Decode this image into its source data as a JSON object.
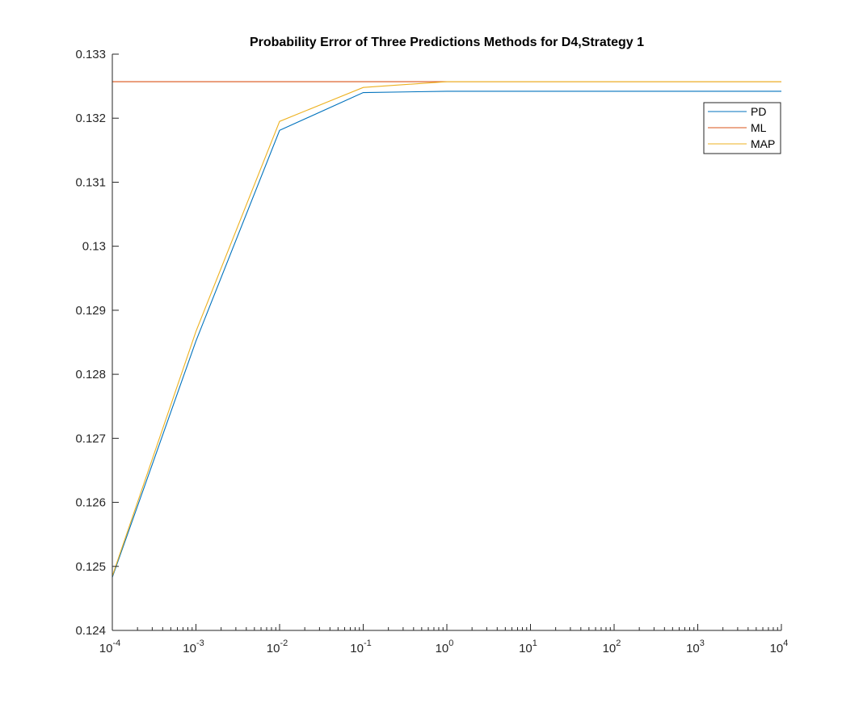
{
  "chart_data": {
    "type": "line",
    "title": "Probability Error of Three Predictions Methods for D4,Strategy 1",
    "xlabel": "",
    "ylabel": "",
    "xscale": "log",
    "xlim": [
      0.0001,
      10000
    ],
    "ylim": [
      0.124,
      0.133
    ],
    "x": [
      0.0001,
      0.001,
      0.01,
      0.1,
      1,
      10,
      100,
      1000,
      10000
    ],
    "x_tick_values": [
      0.0001,
      0.001,
      0.01,
      0.1,
      1,
      10,
      100,
      1000,
      10000
    ],
    "x_tick_labels": [
      {
        "base": "10",
        "exp": "-4"
      },
      {
        "base": "10",
        "exp": "-3"
      },
      {
        "base": "10",
        "exp": "-2"
      },
      {
        "base": "10",
        "exp": "-1"
      },
      {
        "base": "10",
        "exp": "0"
      },
      {
        "base": "10",
        "exp": "1"
      },
      {
        "base": "10",
        "exp": "2"
      },
      {
        "base": "10",
        "exp": "3"
      },
      {
        "base": "10",
        "exp": "4"
      }
    ],
    "y_tick_values": [
      0.124,
      0.125,
      0.126,
      0.127,
      0.128,
      0.129,
      0.13,
      0.131,
      0.132,
      0.133
    ],
    "y_tick_labels": [
      "0.124",
      "0.125",
      "0.126",
      "0.127",
      "0.128",
      "0.129",
      "0.13",
      "0.131",
      "0.132",
      "0.133"
    ],
    "grid": false,
    "legend_position": "top-right",
    "series": [
      {
        "name": "PD",
        "color": "#0072BD",
        "values": [
          0.12483,
          0.12852,
          0.13181,
          0.1324,
          0.13242,
          0.13242,
          0.13242,
          0.13242,
          0.13242
        ]
      },
      {
        "name": "ML",
        "color": "#D95319",
        "values": [
          0.13257,
          0.13257,
          0.13257,
          0.13257,
          0.13257,
          0.13257,
          0.13257,
          0.13257,
          0.13257
        ]
      },
      {
        "name": "MAP",
        "color": "#EDB120",
        "values": [
          0.12485,
          0.12867,
          0.13195,
          0.13248,
          0.13257,
          0.13257,
          0.13257,
          0.13257,
          0.13257
        ]
      }
    ]
  }
}
